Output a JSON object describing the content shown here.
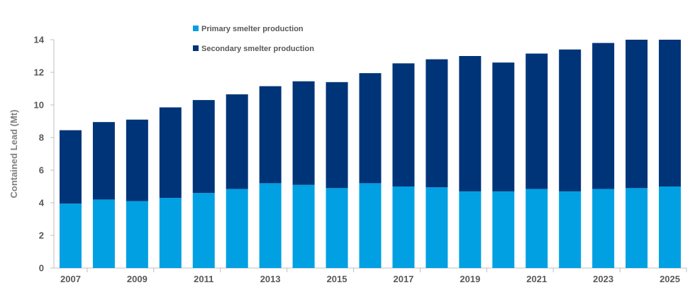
{
  "chart_data": {
    "type": "bar",
    "stacked": true,
    "ylabel": "Contained Lead (Mt)",
    "xlabel": "",
    "ylim": [
      0,
      14
    ],
    "yticks": [
      0,
      2,
      4,
      6,
      8,
      10,
      12,
      14
    ],
    "categories": [
      "2007",
      "2008",
      "2009",
      "2010",
      "2011",
      "2012",
      "2013",
      "2014",
      "2015",
      "2016",
      "2017",
      "2018",
      "2019",
      "2020",
      "2021",
      "2022",
      "2023",
      "2024",
      "2025"
    ],
    "xtick_labels": [
      "2007",
      "",
      "2009",
      "",
      "2011",
      "",
      "2013",
      "",
      "2015",
      "",
      "2017",
      "",
      "2019",
      "",
      "2021",
      "",
      "2023",
      "",
      "2025"
    ],
    "series": [
      {
        "name": "Primary smelter production",
        "color": "#00a0e3",
        "values": [
          3.95,
          4.2,
          4.1,
          4.3,
          4.6,
          4.85,
          5.2,
          5.1,
          4.9,
          5.2,
          5.0,
          4.95,
          4.7,
          4.7,
          4.85,
          4.7,
          4.85,
          4.9,
          5.0
        ]
      },
      {
        "name": "Secondary smelter production",
        "color": "#003478",
        "values": [
          4.5,
          4.75,
          5.0,
          5.55,
          5.7,
          5.8,
          5.95,
          6.35,
          6.5,
          6.75,
          7.55,
          7.85,
          8.3,
          7.9,
          8.3,
          8.7,
          8.95,
          9.1,
          9.0
        ]
      }
    ],
    "legend_position": "top",
    "grid": false
  }
}
